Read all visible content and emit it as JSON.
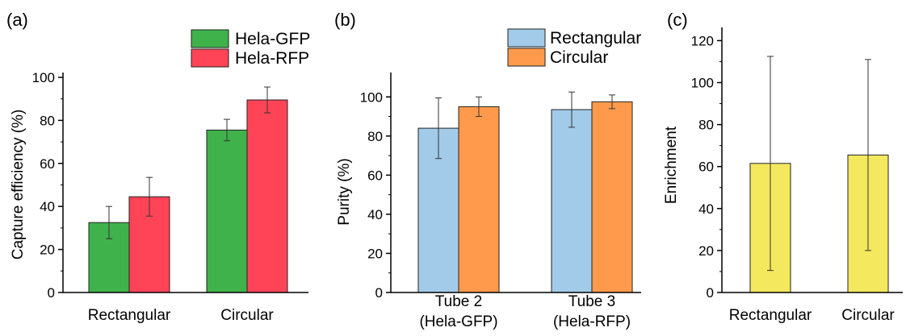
{
  "chart_data": [
    {
      "type": "bar",
      "panel_label": "(a)",
      "title": "",
      "xlabel": "",
      "ylabel": "Capture efficiency (%)",
      "ylim": [
        0,
        100
      ],
      "yticks": [
        0,
        20,
        40,
        60,
        80,
        100
      ],
      "categories": [
        "Rectangular",
        "Circular"
      ],
      "series": [
        {
          "name": "Hela-GFP",
          "color": "#3fb24c",
          "values": [
            32.5,
            75.5
          ],
          "errors": [
            7.5,
            5.0
          ]
        },
        {
          "name": "Hela-RFP",
          "color": "#ff4458",
          "values": [
            44.5,
            89.5
          ],
          "errors": [
            9.0,
            6.0
          ]
        }
      ],
      "legend": "top-right",
      "grid": false
    },
    {
      "type": "bar",
      "panel_label": "(b)",
      "title": "",
      "xlabel": "",
      "ylabel": "Purity (%)",
      "ylim": [
        0,
        110
      ],
      "yticks": [
        0,
        20,
        40,
        60,
        80,
        100
      ],
      "categories": [
        [
          "Tube 2",
          "(Hela-GFP)"
        ],
        [
          "Tube 3",
          "(Hela-RFP)"
        ]
      ],
      "series": [
        {
          "name": "Rectangular",
          "color": "#a2cbe9",
          "values": [
            84,
            93.5
          ],
          "errors": [
            15.5,
            9.0
          ]
        },
        {
          "name": "Circular",
          "color": "#ff9a4c",
          "values": [
            95,
            97.5
          ],
          "errors": [
            5.0,
            3.5
          ]
        }
      ],
      "legend": "top-right",
      "grid": false
    },
    {
      "type": "bar",
      "panel_label": "(c)",
      "title": "",
      "xlabel": "",
      "ylabel": "Enrichment",
      "ylim": [
        0,
        124
      ],
      "yticks": [
        0,
        20,
        40,
        60,
        80,
        100,
        120
      ],
      "categories": [
        "Rectangular",
        "Circular"
      ],
      "series": [
        {
          "name": "",
          "color": "#f3e85e",
          "values": [
            61.5,
            65.5
          ],
          "errors": [
            51,
            45.5
          ]
        }
      ],
      "legend": "none",
      "grid": false
    }
  ]
}
